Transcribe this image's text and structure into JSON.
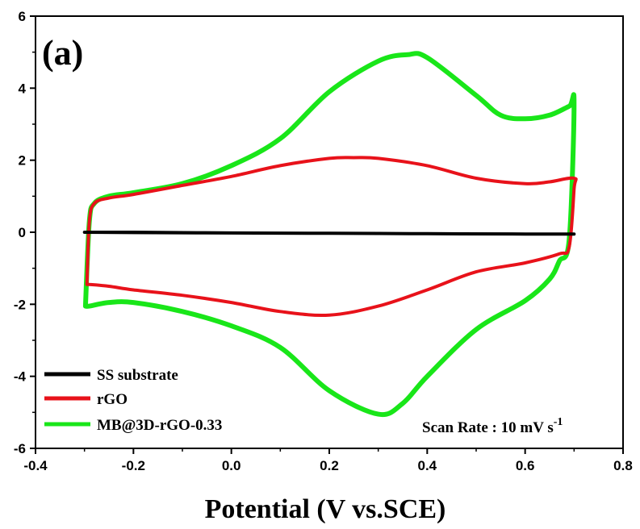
{
  "chart_data": {
    "type": "line",
    "panel_label": "(a)",
    "xlabel": "Potential (V vs.SCE)",
    "ylabel": "",
    "xlim": [
      -0.4,
      0.8
    ],
    "ylim": [
      -6,
      6
    ],
    "x_ticks": [
      "-0.4",
      "-0.2",
      "0.0",
      "0.2",
      "0.4",
      "0.6",
      "0.8"
    ],
    "y_ticks": [
      "-6",
      "-4",
      "-2",
      "0",
      "2",
      "4",
      "6"
    ],
    "legend_position": "bottom-left",
    "annotation": {
      "text": "Scan Rate : 10 mV s",
      "sup": "-1"
    },
    "series": [
      {
        "name": "SS substrate",
        "color": "#000000",
        "x": [
          -0.3,
          -0.2,
          0.0,
          0.2,
          0.4,
          0.6,
          0.7,
          0.6,
          0.4,
          0.2,
          0.0,
          -0.2,
          -0.3
        ],
        "y": [
          0.0,
          0.0,
          -0.02,
          -0.03,
          -0.04,
          -0.05,
          -0.05,
          -0.05,
          -0.04,
          -0.03,
          -0.02,
          -0.01,
          0.0
        ]
      },
      {
        "name": "rGO",
        "color": "#e8121a",
        "x": [
          -0.295,
          -0.29,
          -0.28,
          -0.25,
          -0.2,
          -0.1,
          0.0,
          0.1,
          0.2,
          0.25,
          0.3,
          0.4,
          0.5,
          0.6,
          0.65,
          0.7,
          0.7,
          0.69,
          0.67,
          0.6,
          0.5,
          0.4,
          0.3,
          0.2,
          0.1,
          0.0,
          -0.1,
          -0.2,
          -0.25,
          -0.29,
          -0.295
        ],
        "y": [
          -1.45,
          0.3,
          0.8,
          0.95,
          1.05,
          1.3,
          1.55,
          1.85,
          2.05,
          2.07,
          2.05,
          1.85,
          1.5,
          1.35,
          1.4,
          1.5,
          1.2,
          -0.4,
          -0.6,
          -0.85,
          -1.1,
          -1.6,
          -2.05,
          -2.3,
          -2.2,
          -1.95,
          -1.75,
          -1.6,
          -1.5,
          -1.45,
          -1.45
        ]
      },
      {
        "name": "MB@3D-rGO-0.33",
        "color": "#19e619",
        "x": [
          -0.298,
          -0.29,
          -0.28,
          -0.25,
          -0.2,
          -0.1,
          0.0,
          0.1,
          0.2,
          0.3,
          0.36,
          0.4,
          0.5,
          0.55,
          0.6,
          0.65,
          0.69,
          0.7,
          0.69,
          0.67,
          0.65,
          0.6,
          0.5,
          0.4,
          0.35,
          0.3,
          0.2,
          0.1,
          0.0,
          -0.1,
          -0.2,
          -0.25,
          -0.29,
          -0.298
        ],
        "y": [
          -2.05,
          0.3,
          0.8,
          1.0,
          1.1,
          1.35,
          1.85,
          2.6,
          3.9,
          4.75,
          4.93,
          4.85,
          3.8,
          3.25,
          3.15,
          3.25,
          3.5,
          3.55,
          -0.2,
          -0.8,
          -1.3,
          -1.9,
          -2.7,
          -4.0,
          -4.75,
          -5.05,
          -4.4,
          -3.2,
          -2.6,
          -2.2,
          -1.95,
          -1.95,
          -2.05,
          -2.05
        ]
      }
    ]
  }
}
